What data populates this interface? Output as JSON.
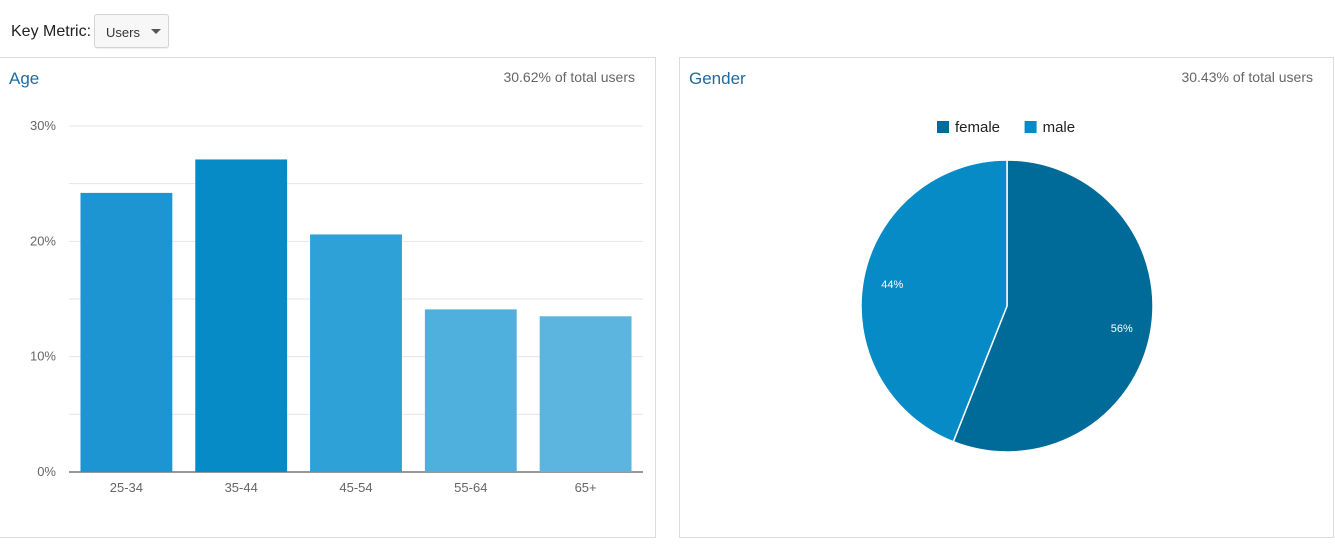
{
  "header": {
    "key_metric_label": "Key Metric:",
    "metric_select_value": "Users"
  },
  "age_panel": {
    "title": "Age",
    "subtitle": "30.62% of total users"
  },
  "gender_panel": {
    "title": "Gender",
    "subtitle": "30.43% of total users"
  },
  "colors": {
    "title_blue": "#1f6b9e",
    "female": "#006b99",
    "male": "#068bc6"
  },
  "chart_data": [
    {
      "type": "bar",
      "categories": [
        "25-34",
        "35-44",
        "45-54",
        "55-64",
        "65+"
      ],
      "values": [
        24.2,
        27.1,
        20.6,
        14.1,
        13.5
      ],
      "bar_colors": [
        "#1c95d2",
        "#068bc6",
        "#2ea2d6",
        "#4fb0dd",
        "#5bb5df"
      ],
      "ylim": [
        0,
        30
      ],
      "yticks": [
        0,
        10,
        20,
        30
      ],
      "ytick_labels": [
        "0%",
        "10%",
        "20%",
        "30%"
      ],
      "grid": true
    },
    {
      "type": "pie",
      "legend": [
        "female",
        "male"
      ],
      "values": [
        56,
        44
      ],
      "labels": [
        "56%",
        "44%"
      ],
      "colors": [
        "#006b99",
        "#068bc6"
      ],
      "legend_position": "top"
    }
  ]
}
